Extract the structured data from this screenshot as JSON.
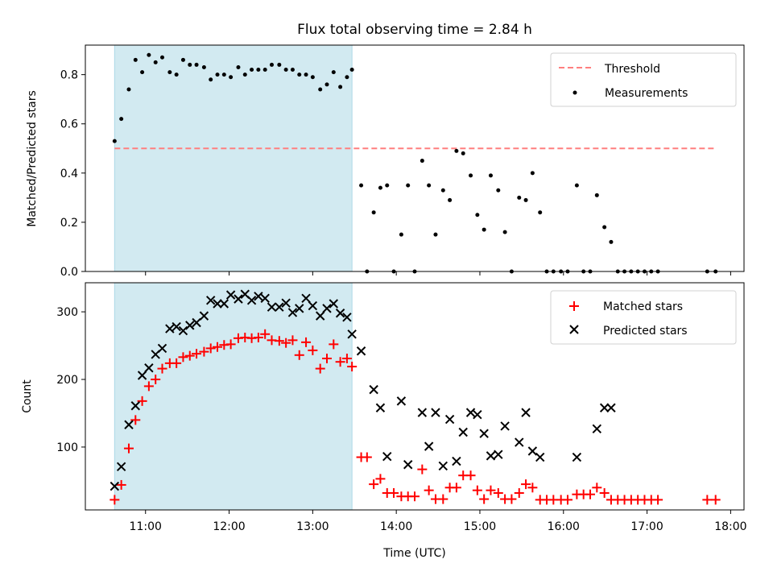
{
  "figure": {
    "title": "Flux total observing time = 2.84 h"
  },
  "colors": {
    "shade": "#add8e6",
    "threshold": "#ff7f7f",
    "measurement": "#000000",
    "matched": "#ff0000",
    "predicted": "#000000"
  },
  "chart_data": [
    {
      "type": "scatter",
      "panel": "top",
      "title": "Flux total observing time = 2.84 h",
      "xlabel": "",
      "ylabel": "Matched/Predicted stars",
      "x_unit": "hours (UTC)",
      "xlim": [
        10.28,
        18.16
      ],
      "ylim": [
        0,
        0.92
      ],
      "yticks": [
        0.0,
        0.2,
        0.4,
        0.6,
        0.8
      ],
      "ytick_labels": [
        "0.0",
        "0.2",
        "0.4",
        "0.6",
        "0.8"
      ],
      "xticks": [
        11,
        12,
        13,
        14,
        15,
        16,
        17,
        18
      ],
      "shaded_interval": [
        10.63,
        13.47
      ],
      "legend": {
        "position": "top-right",
        "entries": [
          "Threshold",
          "Measurements"
        ]
      },
      "threshold": {
        "name": "Threshold",
        "y": 0.5,
        "x": [
          10.63,
          17.82
        ]
      },
      "series": [
        {
          "name": "Measurements",
          "points": [
            [
              10.63,
              0.53
            ],
            [
              10.71,
              0.62
            ],
            [
              10.8,
              0.74
            ],
            [
              10.88,
              0.86
            ],
            [
              10.96,
              0.81
            ],
            [
              11.04,
              0.88
            ],
            [
              11.12,
              0.85
            ],
            [
              11.2,
              0.87
            ],
            [
              11.29,
              0.81
            ],
            [
              11.37,
              0.8
            ],
            [
              11.45,
              0.86
            ],
            [
              11.53,
              0.84
            ],
            [
              11.61,
              0.84
            ],
            [
              11.7,
              0.83
            ],
            [
              11.78,
              0.78
            ],
            [
              11.86,
              0.8
            ],
            [
              11.94,
              0.8
            ],
            [
              12.02,
              0.79
            ],
            [
              12.11,
              0.83
            ],
            [
              12.19,
              0.8
            ],
            [
              12.27,
              0.82
            ],
            [
              12.35,
              0.82
            ],
            [
              12.43,
              0.82
            ],
            [
              12.51,
              0.84
            ],
            [
              12.6,
              0.84
            ],
            [
              12.68,
              0.82
            ],
            [
              12.76,
              0.82
            ],
            [
              12.84,
              0.8
            ],
            [
              12.92,
              0.8
            ],
            [
              13.0,
              0.79
            ],
            [
              13.09,
              0.74
            ],
            [
              13.17,
              0.76
            ],
            [
              13.25,
              0.81
            ],
            [
              13.33,
              0.75
            ],
            [
              13.41,
              0.79
            ],
            [
              13.47,
              0.82
            ],
            [
              13.58,
              0.35
            ],
            [
              13.65,
              0.0
            ],
            [
              13.73,
              0.24
            ],
            [
              13.81,
              0.34
            ],
            [
              13.89,
              0.35
            ],
            [
              13.97,
              0.0
            ],
            [
              14.06,
              0.15
            ],
            [
              14.14,
              0.35
            ],
            [
              14.22,
              0.0
            ],
            [
              14.31,
              0.45
            ],
            [
              14.39,
              0.35
            ],
            [
              14.47,
              0.15
            ],
            [
              14.56,
              0.33
            ],
            [
              14.64,
              0.29
            ],
            [
              14.72,
              0.49
            ],
            [
              14.8,
              0.48
            ],
            [
              14.89,
              0.39
            ],
            [
              14.97,
              0.23
            ],
            [
              15.05,
              0.17
            ],
            [
              15.13,
              0.39
            ],
            [
              15.22,
              0.33
            ],
            [
              15.3,
              0.16
            ],
            [
              15.38,
              0.0
            ],
            [
              15.47,
              0.3
            ],
            [
              15.55,
              0.29
            ],
            [
              15.63,
              0.4
            ],
            [
              15.72,
              0.24
            ],
            [
              15.8,
              0.0
            ],
            [
              15.88,
              0.0
            ],
            [
              15.97,
              0.0
            ],
            [
              16.05,
              0.0
            ],
            [
              16.16,
              0.35
            ],
            [
              16.24,
              0.0
            ],
            [
              16.32,
              0.0
            ],
            [
              16.4,
              0.31
            ],
            [
              16.49,
              0.18
            ],
            [
              16.57,
              0.12
            ],
            [
              16.65,
              0.0
            ],
            [
              16.73,
              0.0
            ],
            [
              16.81,
              0.0
            ],
            [
              16.89,
              0.0
            ],
            [
              16.97,
              0.0
            ],
            [
              17.05,
              0.0
            ],
            [
              17.13,
              0.0
            ],
            [
              17.72,
              0.0
            ],
            [
              17.82,
              0.0
            ]
          ]
        }
      ]
    },
    {
      "type": "scatter",
      "panel": "bottom",
      "xlabel": "Time (UTC)",
      "ylabel": "Count",
      "x_unit": "hours (UTC)",
      "xlim": [
        10.28,
        18.16
      ],
      "ylim": [
        7,
        343
      ],
      "yticks": [
        100,
        200,
        300
      ],
      "ytick_labels": [
        "100",
        "200",
        "300"
      ],
      "xticks": [
        11,
        12,
        13,
        14,
        15,
        16,
        17,
        18
      ],
      "xtick_labels": [
        "11:00",
        "12:00",
        "13:00",
        "14:00",
        "15:00",
        "16:00",
        "17:00",
        "18:00"
      ],
      "shaded_interval": [
        10.63,
        13.47
      ],
      "legend": {
        "position": "top-right",
        "entries": [
          "Matched stars",
          "Predicted stars"
        ]
      },
      "series": [
        {
          "name": "Matched stars",
          "marker": "plus",
          "points": [
            [
              10.63,
              22
            ],
            [
              10.71,
              44
            ],
            [
              10.8,
              98
            ],
            [
              10.88,
              140
            ],
            [
              10.96,
              168
            ],
            [
              11.04,
              190
            ],
            [
              11.12,
              200
            ],
            [
              11.2,
              216
            ],
            [
              11.29,
              224
            ],
            [
              11.37,
              224
            ],
            [
              11.45,
              233
            ],
            [
              11.53,
              235
            ],
            [
              11.61,
              238
            ],
            [
              11.7,
              241
            ],
            [
              11.78,
              246
            ],
            [
              11.86,
              248
            ],
            [
              11.94,
              251
            ],
            [
              12.02,
              252
            ],
            [
              12.11,
              261
            ],
            [
              12.19,
              262
            ],
            [
              12.27,
              261
            ],
            [
              12.35,
              262
            ],
            [
              12.43,
              267
            ],
            [
              12.51,
              258
            ],
            [
              12.6,
              257
            ],
            [
              12.68,
              254
            ],
            [
              12.76,
              258
            ],
            [
              12.84,
              236
            ],
            [
              12.92,
              255
            ],
            [
              13.0,
              243
            ],
            [
              13.09,
              216
            ],
            [
              13.17,
              231
            ],
            [
              13.25,
              252
            ],
            [
              13.33,
              226
            ],
            [
              13.41,
              231
            ],
            [
              13.47,
              219
            ],
            [
              13.58,
              85
            ],
            [
              13.65,
              85
            ],
            [
              13.73,
              45
            ],
            [
              13.81,
              53
            ],
            [
              13.89,
              32
            ],
            [
              13.97,
              32
            ],
            [
              14.06,
              27
            ],
            [
              14.14,
              27
            ],
            [
              14.22,
              27
            ],
            [
              14.31,
              67
            ],
            [
              14.39,
              36
            ],
            [
              14.47,
              23
            ],
            [
              14.56,
              23
            ],
            [
              14.64,
              40
            ],
            [
              14.72,
              40
            ],
            [
              14.8,
              58
            ],
            [
              14.89,
              58
            ],
            [
              14.97,
              36
            ],
            [
              15.05,
              23
            ],
            [
              15.13,
              36
            ],
            [
              15.22,
              32
            ],
            [
              15.3,
              23
            ],
            [
              15.38,
              23
            ],
            [
              15.47,
              32
            ],
            [
              15.55,
              45
            ],
            [
              15.63,
              40
            ],
            [
              15.72,
              22
            ],
            [
              15.8,
              22
            ],
            [
              15.88,
              22
            ],
            [
              15.97,
              22
            ],
            [
              16.05,
              22
            ],
            [
              16.16,
              30
            ],
            [
              16.24,
              30
            ],
            [
              16.32,
              30
            ],
            [
              16.4,
              40
            ],
            [
              16.49,
              32
            ],
            [
              16.57,
              22
            ],
            [
              16.65,
              22
            ],
            [
              16.73,
              22
            ],
            [
              16.81,
              22
            ],
            [
              16.89,
              22
            ],
            [
              16.97,
              22
            ],
            [
              17.05,
              22
            ],
            [
              17.13,
              22
            ],
            [
              17.72,
              22
            ],
            [
              17.82,
              22
            ]
          ]
        },
        {
          "name": "Predicted stars",
          "marker": "x",
          "points": [
            [
              10.63,
              42
            ],
            [
              10.71,
              71
            ],
            [
              10.8,
              133
            ],
            [
              10.88,
              161
            ],
            [
              10.96,
              206
            ],
            [
              11.04,
              217
            ],
            [
              11.12,
              237
            ],
            [
              11.2,
              246
            ],
            [
              11.29,
              275
            ],
            [
              11.37,
              278
            ],
            [
              11.45,
              272
            ],
            [
              11.53,
              280
            ],
            [
              11.61,
              284
            ],
            [
              11.7,
              294
            ],
            [
              11.78,
              317
            ],
            [
              11.86,
              312
            ],
            [
              11.94,
              312
            ],
            [
              12.02,
              325
            ],
            [
              12.11,
              319
            ],
            [
              12.19,
              326
            ],
            [
              12.27,
              317
            ],
            [
              12.35,
              323
            ],
            [
              12.43,
              320
            ],
            [
              12.51,
              307
            ],
            [
              12.6,
              307
            ],
            [
              12.68,
              313
            ],
            [
              12.76,
              299
            ],
            [
              12.84,
              305
            ],
            [
              12.92,
              320
            ],
            [
              13.0,
              309
            ],
            [
              13.09,
              294
            ],
            [
              13.17,
              305
            ],
            [
              13.25,
              312
            ],
            [
              13.33,
              298
            ],
            [
              13.41,
              292
            ],
            [
              13.47,
              267
            ],
            [
              13.58,
              242
            ],
            [
              13.73,
              185
            ],
            [
              13.81,
              158
            ],
            [
              13.89,
              86
            ],
            [
              14.06,
              168
            ],
            [
              14.14,
              74
            ],
            [
              14.31,
              151
            ],
            [
              14.39,
              101
            ],
            [
              14.47,
              151
            ],
            [
              14.56,
              72
            ],
            [
              14.64,
              141
            ],
            [
              14.72,
              79
            ],
            [
              14.8,
              122
            ],
            [
              14.89,
              151
            ],
            [
              14.97,
              148
            ],
            [
              15.05,
              120
            ],
            [
              15.13,
              87
            ],
            [
              15.22,
              89
            ],
            [
              15.3,
              131
            ],
            [
              15.47,
              107
            ],
            [
              15.55,
              151
            ],
            [
              15.63,
              94
            ],
            [
              15.72,
              85
            ],
            [
              16.16,
              85
            ],
            [
              16.4,
              127
            ],
            [
              16.49,
              158
            ],
            [
              16.57,
              158
            ]
          ]
        }
      ]
    }
  ]
}
